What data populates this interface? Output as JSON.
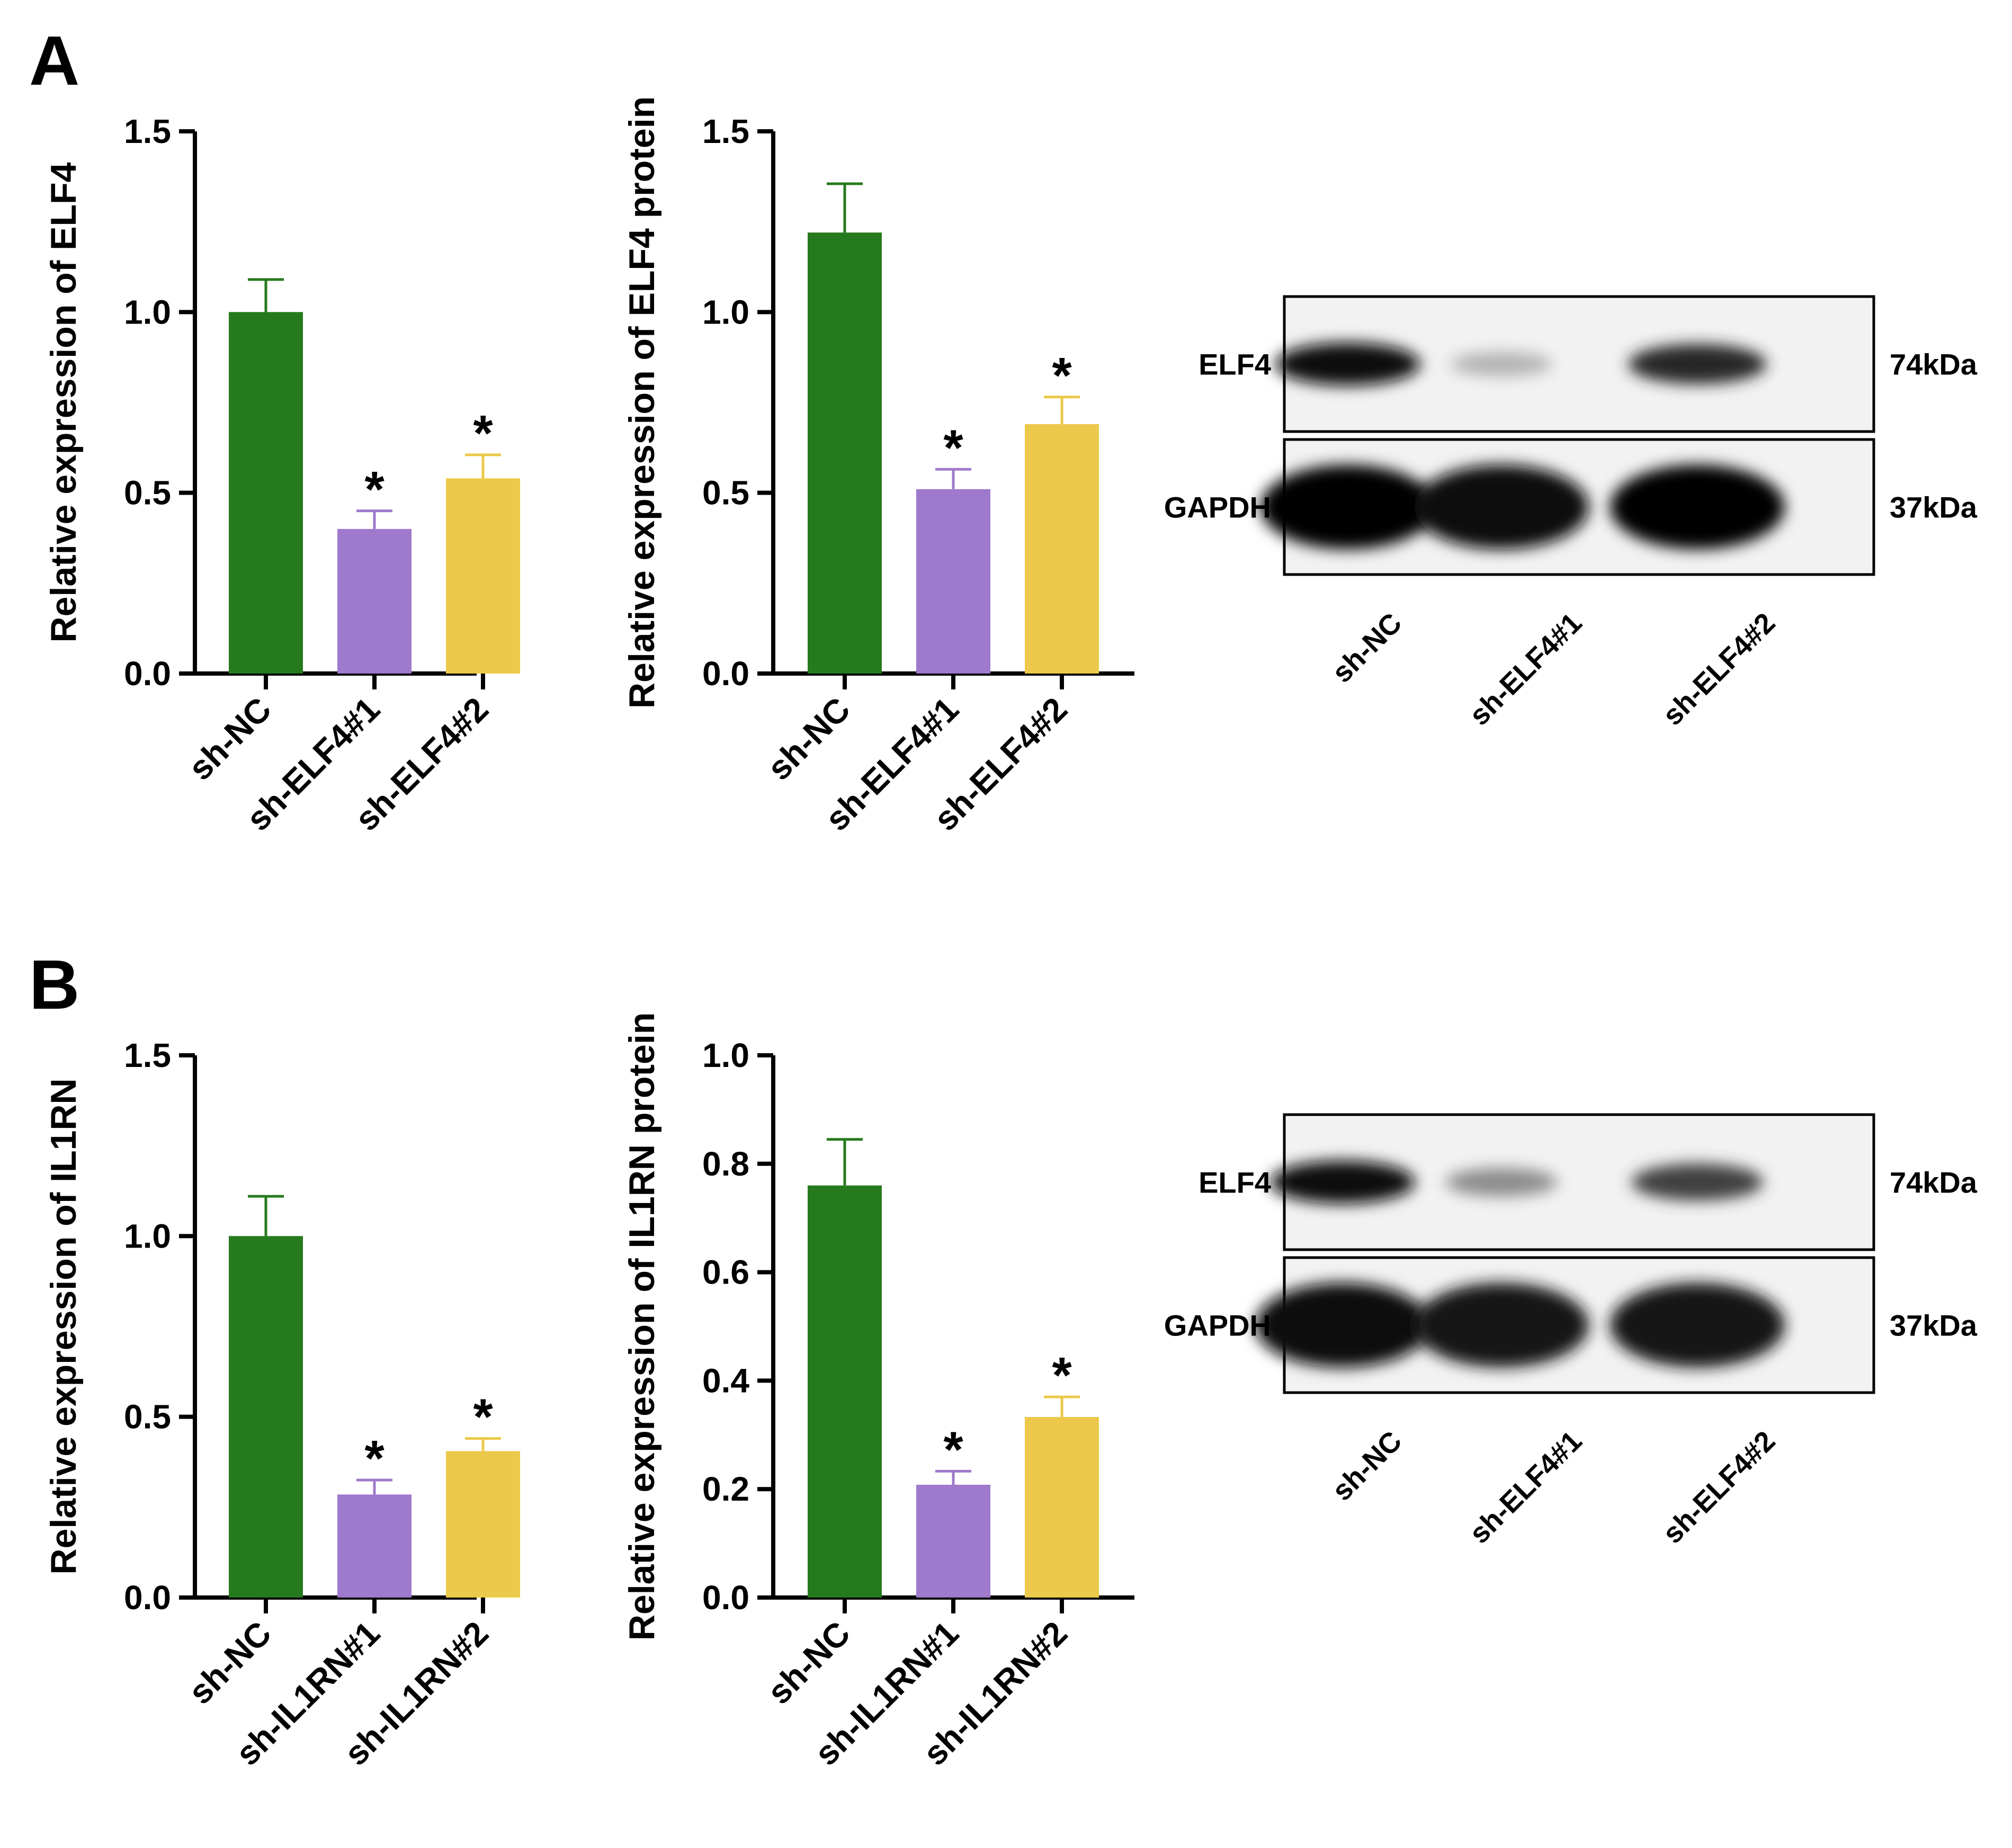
{
  "panels": [
    {
      "label": "A"
    },
    {
      "label": "B"
    }
  ],
  "colors": {
    "bars": [
      "#267a1e",
      "#9f79cc",
      "#ecc94a"
    ],
    "axis": "#000000"
  },
  "chart_data": [
    {
      "type": "bar",
      "panel": "A",
      "title": "",
      "ylabel": "Relative expression of ELF4",
      "xlabel": "",
      "categories": [
        "sh-NC",
        "sh-ELF4#1",
        "sh-ELF4#2"
      ],
      "values": [
        1.0,
        0.4,
        0.54
      ],
      "errors": [
        0.09,
        0.05,
        0.065
      ],
      "significance": [
        "",
        "*",
        "*"
      ],
      "ylim": [
        0,
        1.5
      ],
      "yticks": [
        "0.0",
        "0.5",
        "1.0",
        "1.5"
      ],
      "grid": false
    },
    {
      "type": "bar",
      "panel": "A",
      "title": "",
      "ylabel": "Relative expression of ELF4 protein",
      "xlabel": "",
      "categories": [
        "sh-NC",
        "sh-ELF4#1",
        "sh-ELF4#2"
      ],
      "values": [
        1.22,
        0.51,
        0.69
      ],
      "errors": [
        0.135,
        0.055,
        0.075
      ],
      "significance": [
        "",
        "*",
        "*"
      ],
      "ylim": [
        0,
        1.5
      ],
      "yticks": [
        "0.0",
        "0.5",
        "1.0",
        "1.5"
      ],
      "grid": false
    },
    {
      "type": "bar",
      "panel": "B",
      "title": "",
      "ylabel": "Relative expression of IL1RN",
      "xlabel": "",
      "categories": [
        "sh-NC",
        "sh-IL1RN#1",
        "sh-IL1RN#2"
      ],
      "values": [
        1.0,
        0.285,
        0.405
      ],
      "errors": [
        0.11,
        0.04,
        0.035
      ],
      "significance": [
        "",
        "*",
        "*"
      ],
      "ylim": [
        0,
        1.5
      ],
      "yticks": [
        "0.0",
        "0.5",
        "1.0",
        "1.5"
      ],
      "grid": false
    },
    {
      "type": "bar",
      "panel": "B",
      "title": "",
      "ylabel": "Relative expression of IL1RN protein",
      "xlabel": "",
      "categories": [
        "sh-NC",
        "sh-IL1RN#1",
        "sh-IL1RN#2"
      ],
      "values": [
        0.76,
        0.208,
        0.333
      ],
      "errors": [
        0.085,
        0.025,
        0.037
      ],
      "significance": [
        "",
        "*",
        "*"
      ],
      "ylim": [
        0,
        1.0
      ],
      "yticks": [
        "0.0",
        "0.2",
        "0.4",
        "0.6",
        "0.8",
        "1.0"
      ],
      "grid": false
    }
  ],
  "blots": [
    {
      "panel": "A",
      "rows": [
        {
          "protein": "ELF4",
          "size": "74kDa",
          "intensities": [
            0.95,
            0.3,
            0.85
          ]
        },
        {
          "protein": "GAPDH",
          "size": "37kDa",
          "intensities": [
            1.0,
            0.95,
            1.0
          ]
        }
      ],
      "lanes": [
        "sh-NC",
        "sh-ELF4#1",
        "sh-ELF4#2"
      ]
    },
    {
      "panel": "B",
      "rows": [
        {
          "protein": "ELF4",
          "size": "74kDa",
          "intensities": [
            0.95,
            0.45,
            0.75
          ]
        },
        {
          "protein": "GAPDH",
          "size": "37kDa",
          "intensities": [
            0.95,
            0.9,
            0.92
          ]
        }
      ],
      "lanes": [
        "sh-NC",
        "sh-ELF4#1",
        "sh-ELF4#2"
      ]
    }
  ]
}
